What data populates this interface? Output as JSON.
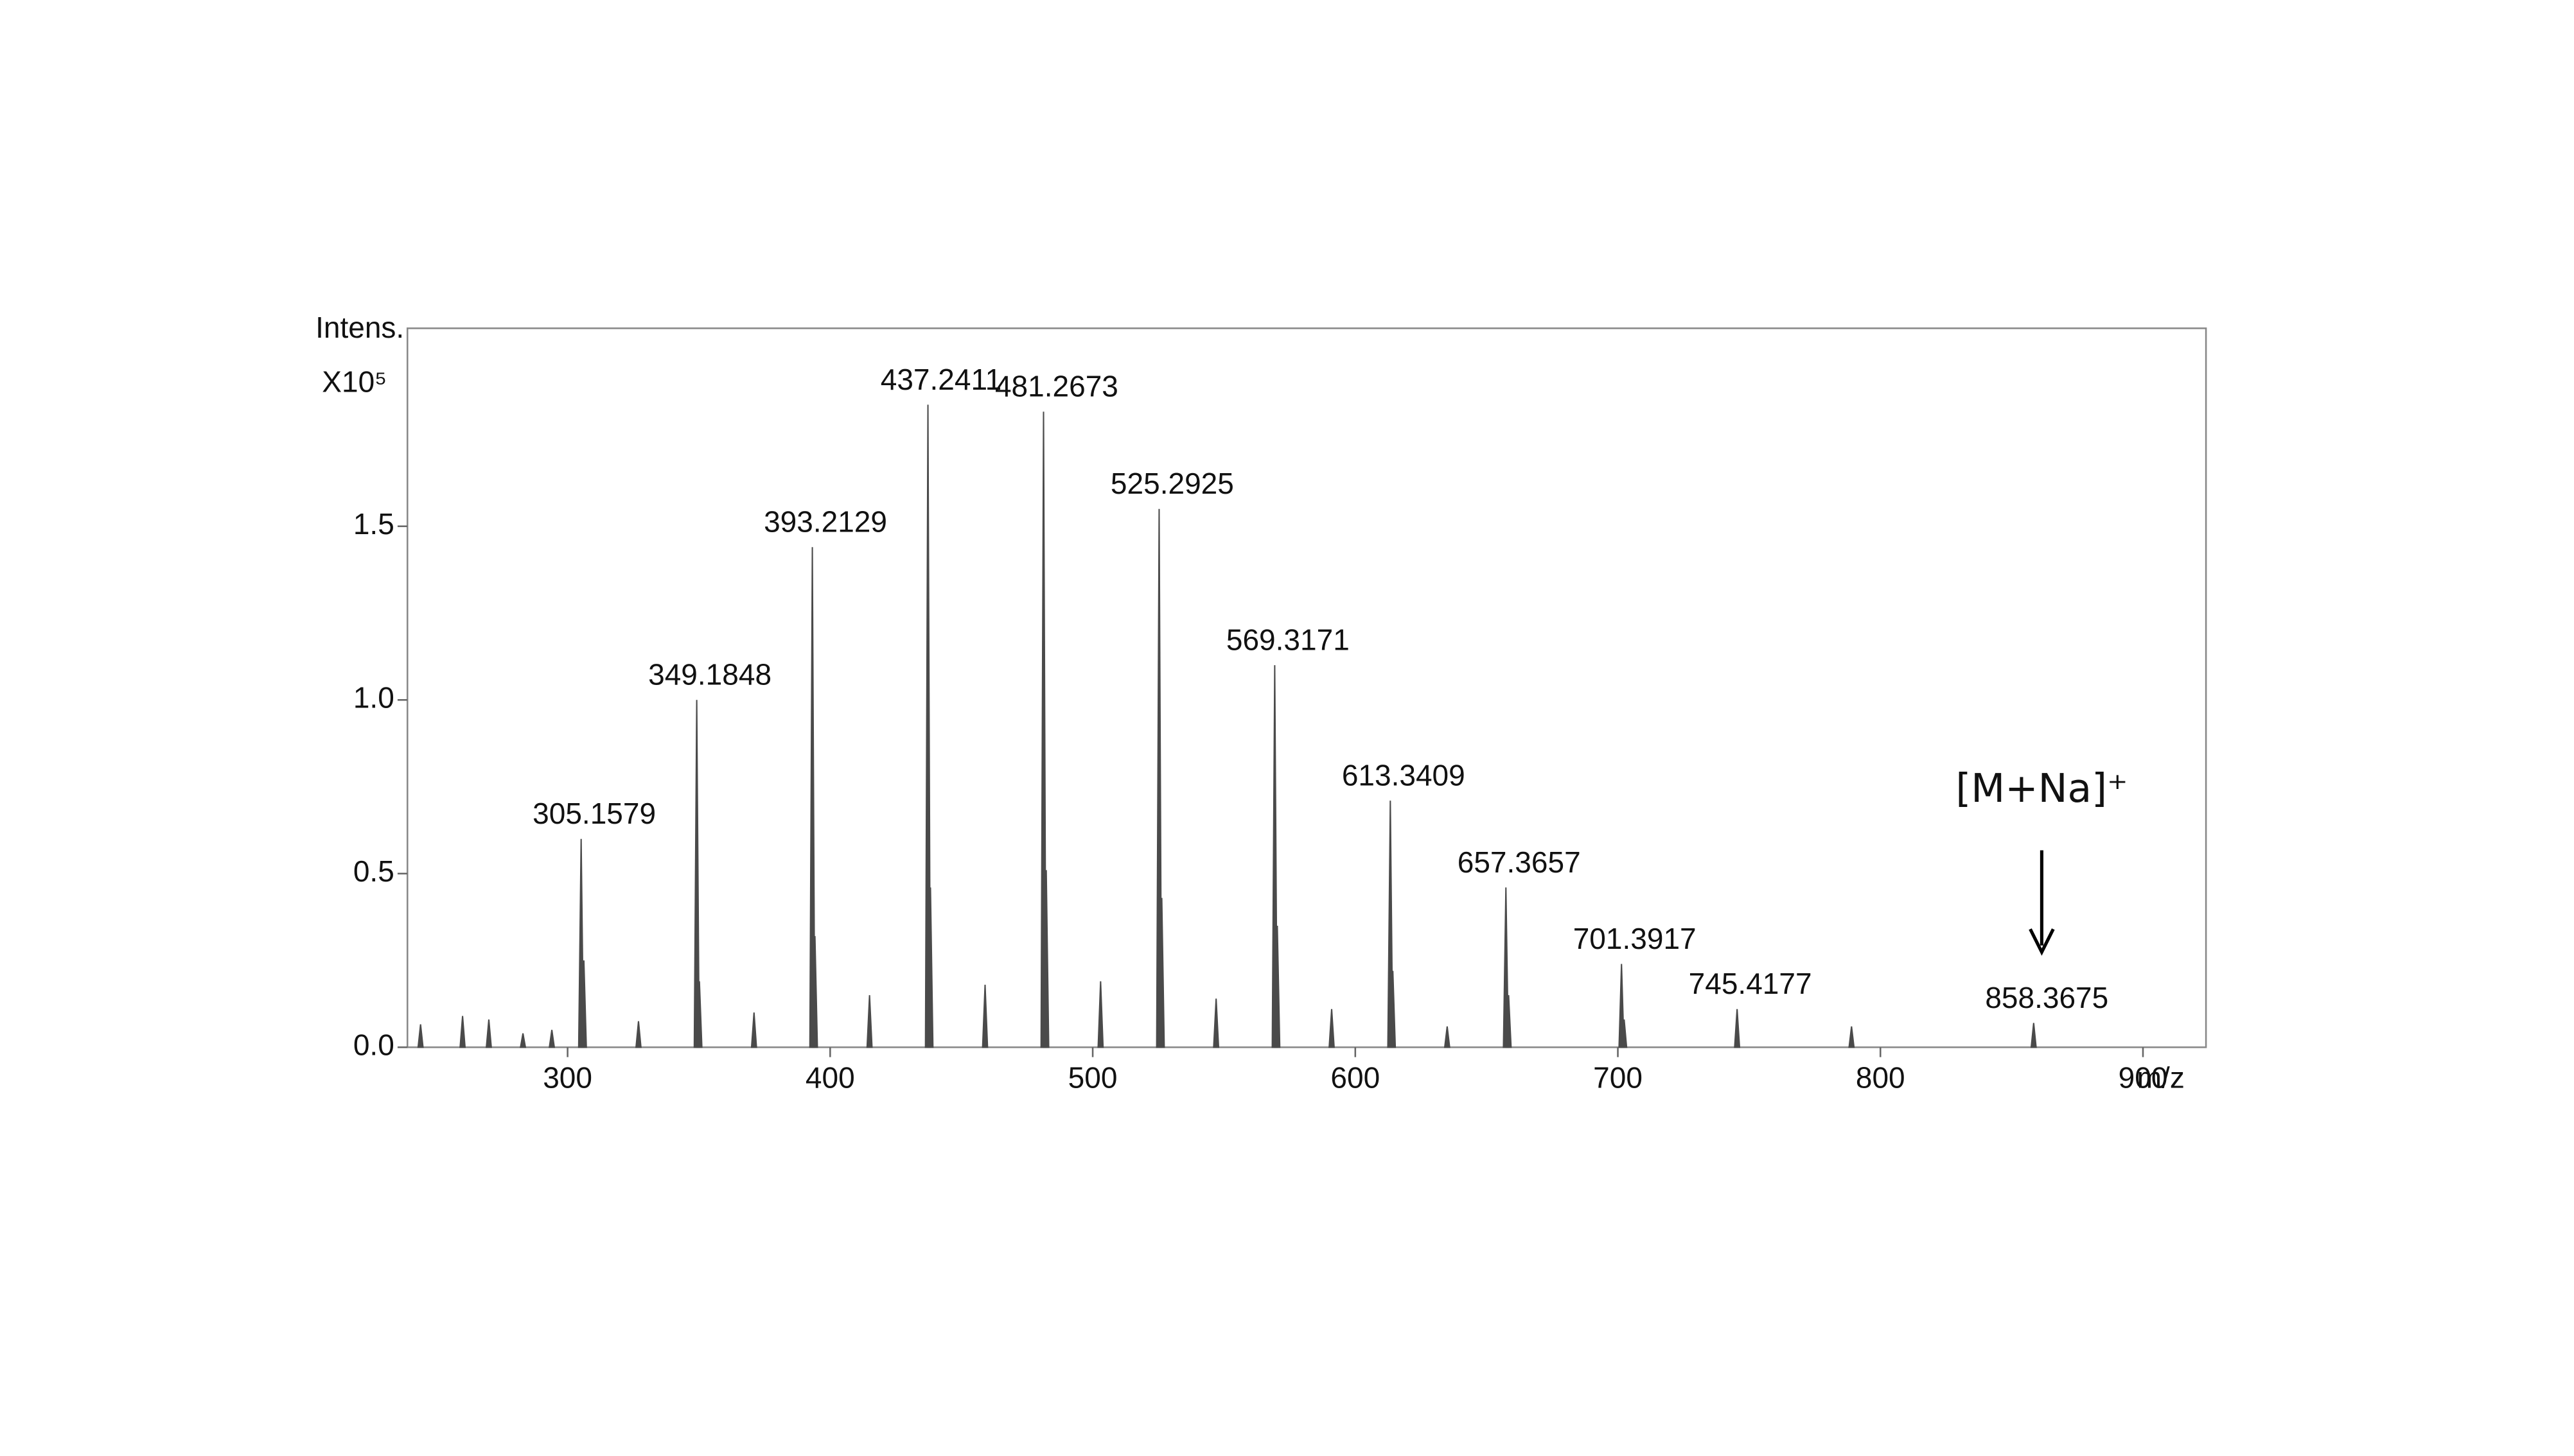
{
  "chart_data": {
    "type": "spectrum",
    "y_label": "Intens.",
    "y_multiplier": "X10⁵",
    "x_label": "m/z",
    "annotation": "[M+Na]⁺",
    "color": "#4a4a4a",
    "xlim": [
      239,
      924
    ],
    "xticks": [
      300,
      400,
      500,
      600,
      700,
      800,
      900
    ],
    "ylim": [
      0,
      2.07
    ],
    "yticks": [
      {
        "value": 0,
        "label": "0.0"
      },
      {
        "value": 0.5,
        "label": "0.5"
      },
      {
        "value": 1,
        "label": "1.0"
      },
      {
        "value": 1.5,
        "label": "1.5"
      }
    ],
    "x": [
      305.1579,
      349.1848,
      393.2129,
      437.2411,
      481.2673,
      525.2925,
      569.3171,
      613.3409,
      657.3657,
      701.3917,
      745.4177,
      858.3675
    ],
    "values": [
      0.6,
      1.0,
      1.44,
      1.85,
      1.83,
      1.55,
      1.1,
      0.71,
      0.46,
      0.24,
      0.11,
      0.07
    ],
    "minor_peaks": {
      "x": [
        244,
        260,
        270,
        283,
        294,
        306.2,
        327,
        350.2,
        371,
        394.2,
        415,
        438.2,
        459,
        482.3,
        503,
        526.3,
        547,
        570.3,
        591,
        614.3,
        635,
        658.4,
        702.4,
        789
      ],
      "values": [
        0.066,
        0.09,
        0.08,
        0.04,
        0.05,
        0.25,
        0.075,
        0.19,
        0.1,
        0.32,
        0.15,
        0.46,
        0.18,
        0.51,
        0.19,
        0.43,
        0.14,
        0.35,
        0.11,
        0.22,
        0.06,
        0.15,
        0.08,
        0.06
      ]
    }
  }
}
